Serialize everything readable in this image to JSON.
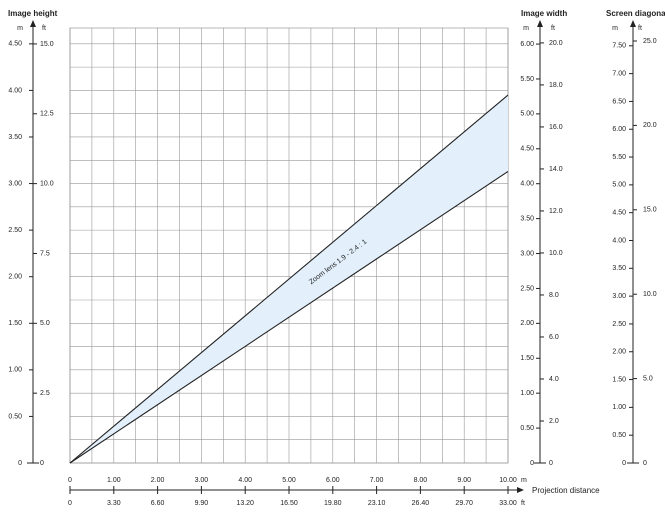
{
  "chart_data": {
    "type": "line",
    "annotation": "Zoom lens 1.9 - 2.4 : 1",
    "band_color": "#e3f0fb",
    "grid": true,
    "x": [
      0,
      10
    ],
    "series": [
      {
        "color": "#222222",
        "values": [
          0,
          3.95
        ]
      },
      {
        "color": "#222222",
        "values": [
          0,
          3.13
        ]
      }
    ],
    "x_label": "Projection distance",
    "x_scales": [
      {
        "unit": "m",
        "lim": [
          0,
          10
        ],
        "ticks": [
          0,
          {
            "value": 1,
            "label": "1.00"
          },
          {
            "value": 2,
            "label": "2.00"
          },
          {
            "value": 3,
            "label": "3.00"
          },
          {
            "value": 4,
            "label": "4.00"
          },
          {
            "value": 5,
            "label": "5.00"
          },
          {
            "value": 6,
            "label": "6.00"
          },
          {
            "value": 7,
            "label": "7.00"
          },
          {
            "value": 8,
            "label": "8.00"
          },
          {
            "value": 9,
            "label": "9.00"
          },
          {
            "value": 10,
            "label": "10.00"
          }
        ]
      },
      {
        "unit": "ft",
        "lim": [
          0,
          33
        ],
        "ticks": [
          0,
          {
            "value": 3.3,
            "label": "3.30"
          },
          {
            "value": 6.6,
            "label": "6.60"
          },
          {
            "value": 9.9,
            "label": "9.90"
          },
          {
            "value": 13.2,
            "label": "13.20"
          },
          {
            "value": 16.5,
            "label": "16.50"
          },
          {
            "value": 19.8,
            "label": "19.80"
          },
          {
            "value": 23.1,
            "label": "23.10"
          },
          {
            "value": 26.4,
            "label": "26.40"
          },
          {
            "value": 29.7,
            "label": "29.70"
          },
          {
            "value": 33,
            "label": "33.00"
          }
        ]
      }
    ],
    "value_axes": [
      {
        "title": "Image height",
        "scales": [
          {
            "unit": "m",
            "lim": [
              0,
              4.67
            ],
            "ticks": [
              0,
              {
                "value": 0.5,
                "label": "0.50"
              },
              {
                "value": 1,
                "label": "1.00"
              },
              {
                "value": 1.5,
                "label": "1.50"
              },
              {
                "value": 2,
                "label": "2.00"
              },
              {
                "value": 2.5,
                "label": "2.50"
              },
              {
                "value": 3,
                "label": "3.00"
              },
              {
                "value": 3.5,
                "label": "3.50"
              },
              {
                "value": 4,
                "label": "4.00"
              },
              {
                "value": 4.5,
                "label": "4.50"
              }
            ]
          },
          {
            "unit": "ft",
            "lim": [
              0,
              15.57
            ],
            "ticks": [
              0,
              2.5,
              {
                "value": 5,
                "label": "5.0"
              },
              7.5,
              {
                "value": 10,
                "label": "10.0"
              },
              12.5,
              {
                "value": 15,
                "label": "15.0"
              }
            ]
          }
        ]
      },
      {
        "title": "Image width",
        "scales": [
          {
            "unit": "m",
            "lim": [
              0,
              6.23
            ],
            "ticks": [
              0,
              {
                "value": 0.5,
                "label": "0.50"
              },
              {
                "value": 1,
                "label": "1.00"
              },
              {
                "value": 1.5,
                "label": "1.50"
              },
              {
                "value": 2,
                "label": "2.00"
              },
              {
                "value": 2.5,
                "label": "2.50"
              },
              {
                "value": 3,
                "label": "3.00"
              },
              {
                "value": 3.5,
                "label": "3.50"
              },
              {
                "value": 4,
                "label": "4.00"
              },
              {
                "value": 4.5,
                "label": "4.50"
              },
              {
                "value": 5,
                "label": "5.00"
              },
              {
                "value": 5.5,
                "label": "5.50"
              },
              {
                "value": 6,
                "label": "6.00"
              }
            ]
          },
          {
            "unit": "ft",
            "lim": [
              0,
              20.71
            ],
            "ticks": [
              0,
              {
                "value": 2,
                "label": "2.0"
              },
              {
                "value": 4,
                "label": "4.0"
              },
              {
                "value": 6,
                "label": "6.0"
              },
              {
                "value": 8,
                "label": "8.0"
              },
              {
                "value": 10,
                "label": "10.0"
              },
              {
                "value": 12,
                "label": "12.0"
              },
              {
                "value": 14,
                "label": "14.0"
              },
              {
                "value": 16,
                "label": "16.0"
              },
              {
                "value": 18,
                "label": "18.0"
              },
              {
                "value": 20,
                "label": "20.0"
              }
            ]
          }
        ]
      },
      {
        "title": "Screen diagona",
        "scales": [
          {
            "unit": "m",
            "lim": [
              0,
              7.82
            ],
            "ticks": [
              0,
              {
                "value": 0.5,
                "label": "0.50"
              },
              {
                "value": 1,
                "label": "1.00"
              },
              {
                "value": 1.5,
                "label": "1.50"
              },
              {
                "value": 2,
                "label": "2.00"
              },
              {
                "value": 2.5,
                "label": "2.50"
              },
              {
                "value": 3,
                "label": "3.00"
              },
              {
                "value": 3.5,
                "label": "3.50"
              },
              {
                "value": 4,
                "label": "4.00"
              },
              {
                "value": 4.5,
                "label": "4.50"
              },
              {
                "value": 5,
                "label": "5.00"
              },
              {
                "value": 5.5,
                "label": "5.50"
              },
              {
                "value": 6,
                "label": "6.00"
              },
              {
                "value": 6.5,
                "label": "6.50"
              },
              {
                "value": 7,
                "label": "7.00"
              },
              {
                "value": 7.5,
                "label": "7.50"
              }
            ]
          },
          {
            "unit": "ft",
            "lim": [
              0,
              25.77
            ],
            "ticks": [
              0,
              {
                "value": 5,
                "label": "5.0"
              },
              {
                "value": 10,
                "label": "10.0"
              },
              {
                "value": 15,
                "label": "15.0"
              },
              {
                "value": 20,
                "label": "20.0"
              },
              {
                "value": 25,
                "label": "25.0"
              }
            ]
          }
        ]
      }
    ]
  }
}
